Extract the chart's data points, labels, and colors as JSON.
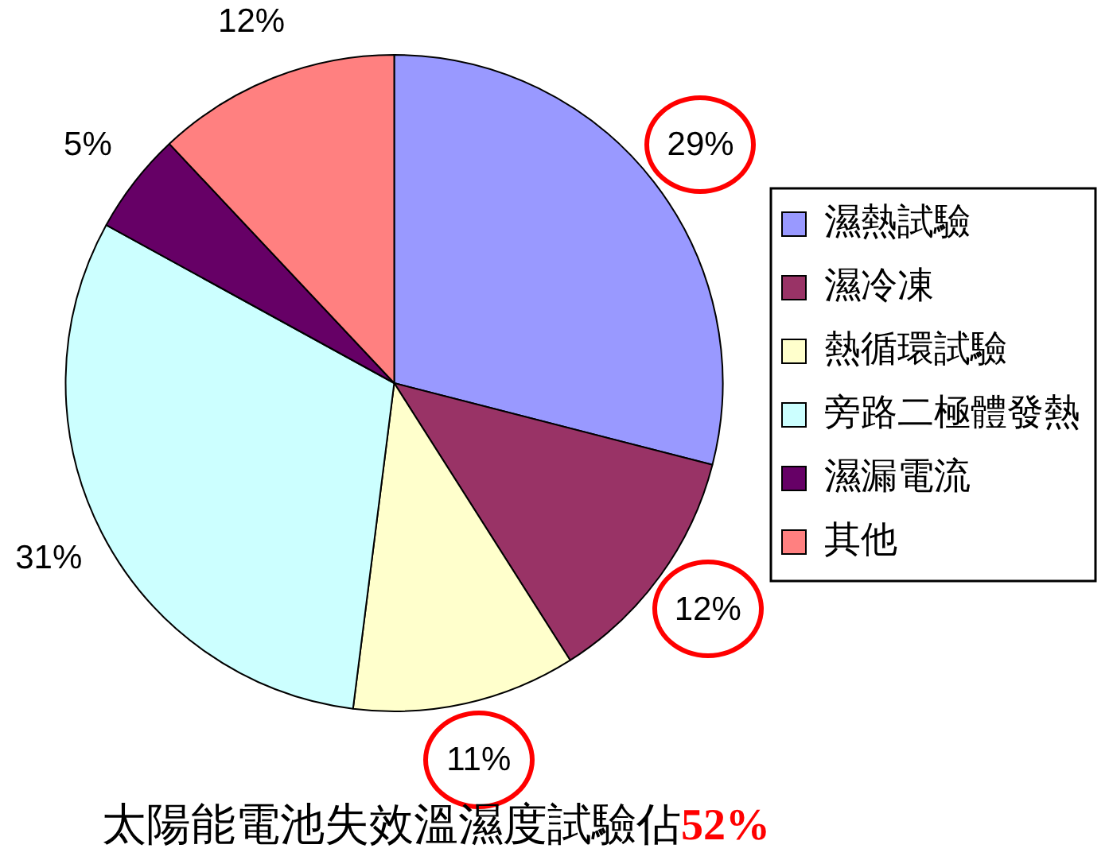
{
  "chart_data": {
    "type": "pie",
    "categories": [
      "濕熱試驗",
      "濕冷凍",
      "熱循環試驗",
      "旁路二極體發熱",
      "濕漏電流",
      "其他"
    ],
    "values": [
      29,
      12,
      11,
      31,
      5,
      12
    ],
    "colors": [
      "#9999ff",
      "#993366",
      "#ffffcc",
      "#ccffff",
      "#660066",
      "#ff8080"
    ],
    "value_labels": [
      "29%",
      "12%",
      "11%",
      "31%",
      "5%",
      "12%"
    ],
    "legend": "right",
    "annotations": [
      "太陽能電池失效溫濕度試驗佔52%"
    ]
  }
}
